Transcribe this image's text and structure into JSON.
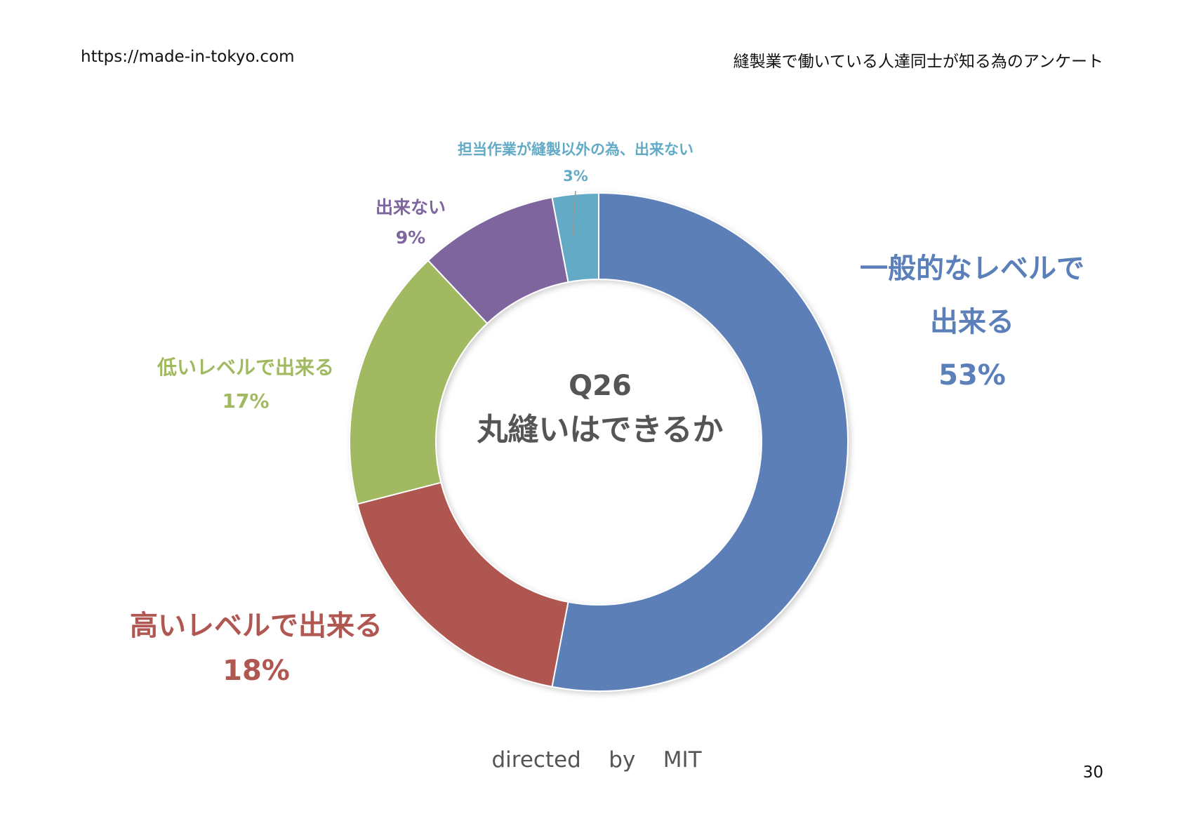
{
  "header": {
    "site_url": "https://made-in-tokyo.com",
    "survey_title": "縫製業で働いている人達同士が知る為のアンケート"
  },
  "center": {
    "question_no": "Q26",
    "question": "丸縫いはできるか"
  },
  "footer": {
    "credit": "directed    by    MIT",
    "page_number": "30"
  },
  "chart_data": {
    "type": "pie",
    "variant": "donut",
    "start": "top",
    "direction": "clockwise",
    "slices": [
      {
        "label": "一般的なレベルで出来る",
        "value": 53,
        "display": "53%",
        "color": "#5B7FB8"
      },
      {
        "label": "高いレベルで出来る",
        "value": 18,
        "display": "18%",
        "color": "#B05751"
      },
      {
        "label": "低いレベルで出来る",
        "value": 17,
        "display": "17%",
        "color": "#A1BA62"
      },
      {
        "label": "出来ない",
        "value": 9,
        "display": "9%",
        "color": "#7F659E"
      },
      {
        "label": "担当作業が縫製以外の為、出来ない",
        "value": 3,
        "display": "3%",
        "color": "#63AAC6"
      }
    ]
  }
}
